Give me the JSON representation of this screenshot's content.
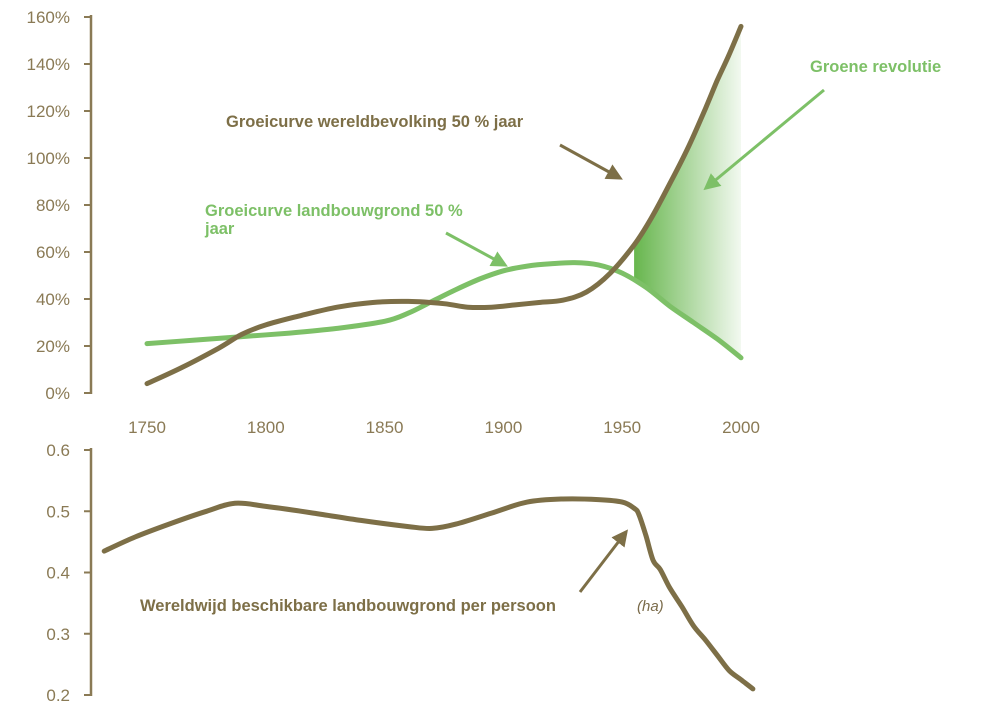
{
  "colors": {
    "population": "#7d6f47",
    "farmland": "#7dc067",
    "axis": "#8a7a55",
    "tick_text": "#8a7a55",
    "green_fill": "#5fb244"
  },
  "chart_data": [
    {
      "type": "line",
      "title": "",
      "xlabel": "",
      "ylabel": "",
      "x_ticks": [
        1750,
        1800,
        1850,
        1900,
        1950,
        2000
      ],
      "y_ticks": [
        "0%",
        "20%",
        "40%",
        "60%",
        "80%",
        "100%",
        "120%",
        "140%",
        "160%"
      ],
      "xlim": [
        1750,
        2000
      ],
      "ylim": [
        0,
        160
      ],
      "grid": false,
      "series": [
        {
          "name": "Groeicurve wereldbevolking 50 % jaar",
          "x": [
            1750,
            1765,
            1780,
            1790,
            1800,
            1815,
            1830,
            1845,
            1860,
            1875,
            1885,
            1895,
            1905,
            1915,
            1925,
            1935,
            1945,
            1955,
            1962,
            1970,
            1978,
            1985,
            1990,
            1995,
            2000
          ],
          "values": [
            4,
            11,
            19,
            25,
            29,
            33,
            36.5,
            38.5,
            39,
            38,
            36.5,
            36.5,
            37.5,
            38.5,
            39.5,
            43,
            51,
            63,
            74,
            89,
            105,
            121,
            133,
            144,
            156
          ]
        },
        {
          "name": "Groeicurve landbouwgrond 50 % jaar",
          "x": [
            1750,
            1770,
            1790,
            1810,
            1830,
            1850,
            1860,
            1870,
            1880,
            1890,
            1900,
            1910,
            1920,
            1930,
            1940,
            1950,
            1960,
            1970,
            1980,
            1990,
            2000
          ],
          "values": [
            21,
            22.5,
            24,
            25.5,
            27.5,
            30.5,
            34,
            39,
            44,
            48.5,
            52,
            54,
            55,
            55.5,
            54.5,
            51,
            45,
            37,
            30,
            23,
            15
          ]
        }
      ],
      "annotations": [
        {
          "text": "Groene revolutie"
        },
        {
          "text": "Groeicurve wereldbevolking 50 % jaar"
        },
        {
          "text": "Groeicurve landbouwgrond 50 %",
          "text2": "jaar"
        }
      ]
    },
    {
      "type": "line",
      "title": "",
      "xlabel": "",
      "ylabel": "",
      "y_ticks": [
        "0.6",
        "0.5",
        "0.4",
        "0.3",
        "0.2"
      ],
      "xlim": [
        1750,
        2000
      ],
      "ylim": [
        0.2,
        0.6
      ],
      "grid": false,
      "series": [
        {
          "name": "Wereldwijd beschikbare landbouwgrond per persoon",
          "unit": "(ha)",
          "x": [
            1732,
            1745,
            1760,
            1775,
            1787,
            1800,
            1820,
            1840,
            1860,
            1870,
            1880,
            1895,
            1910,
            1925,
            1940,
            1950,
            1955,
            1957,
            1960,
            1963,
            1966,
            1970,
            1975,
            1980,
            1985,
            1990,
            1995,
            2000,
            2005
          ],
          "values": [
            0.435,
            0.458,
            0.48,
            0.5,
            0.513,
            0.508,
            0.497,
            0.485,
            0.475,
            0.472,
            0.479,
            0.497,
            0.515,
            0.52,
            0.519,
            0.515,
            0.505,
            0.495,
            0.46,
            0.42,
            0.405,
            0.375,
            0.345,
            0.313,
            0.29,
            0.265,
            0.24,
            0.225,
            0.21
          ]
        }
      ]
    }
  ]
}
